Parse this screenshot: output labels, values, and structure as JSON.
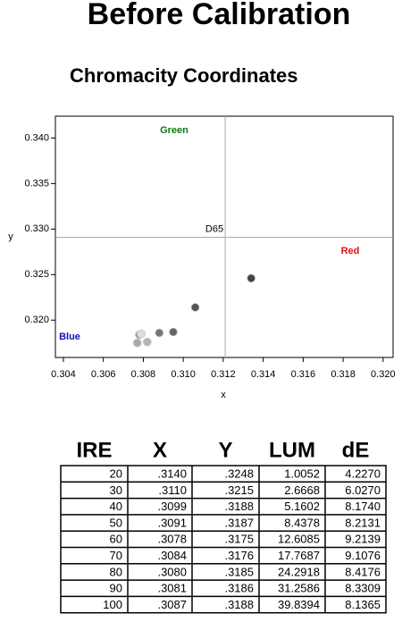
{
  "title": "Before Calibration",
  "chart_data": {
    "type": "scatter",
    "title": "Chromacity Coordinates",
    "x_label": "x",
    "y_label": "y",
    "xlim": [
      0.3036,
      0.3205
    ],
    "ylim": [
      0.3159,
      0.3424
    ],
    "xticks": [
      0.304,
      0.306,
      0.308,
      {
        "value": 0.31,
        "label": "0.310"
      },
      0.312,
      0.314,
      0.316,
      0.318,
      {
        "value": 0.32,
        "label": "0.320"
      }
    ],
    "yticks": [
      {
        "value": 0.32,
        "label": "0.320"
      },
      0.325,
      {
        "value": 0.33,
        "label": "0.330"
      },
      0.335,
      {
        "value": 0.34,
        "label": "0.340"
      }
    ],
    "series": [
      {
        "x": [
          0.3134,
          0.3106,
          0.3095,
          0.3088,
          0.3078,
          0.3077,
          0.3082,
          0.3079
        ],
        "values": [
          0.3246,
          0.3214,
          0.3187,
          0.3186,
          0.3184,
          0.3175,
          0.3176,
          0.3185
        ],
        "colors": [
          "#444444",
          "#555555",
          "#666666",
          "#777777",
          "#999999",
          "#aaaaaa",
          "#b4b4b4",
          "#dddddd"
        ]
      }
    ],
    "reference": {
      "label": "D65",
      "x": 0.3121,
      "y": 0.3291
    },
    "annotations": [
      {
        "text": "Green",
        "color": "#0a7a0a"
      },
      {
        "text": "Red",
        "color": "#e01010"
      },
      {
        "text": "Blue",
        "color": "#1010c0"
      }
    ]
  },
  "table": {
    "header": [
      "IRE",
      "X",
      "Y",
      "LUM",
      "dE"
    ],
    "rows": [
      [
        "20",
        ".3140",
        ".3248",
        "1.0052",
        "4.2270"
      ],
      [
        "30",
        ".3110",
        ".3215",
        "2.6668",
        "6.0270"
      ],
      [
        "40",
        ".3099",
        ".3188",
        "5.1602",
        "8.1740"
      ],
      [
        "50",
        ".3091",
        ".3187",
        "8.4378",
        "8.2131"
      ],
      [
        "60",
        ".3078",
        ".3175",
        "12.6085",
        "9.2139"
      ],
      [
        "70",
        ".3084",
        ".3176",
        "17.7687",
        "9.1076"
      ],
      [
        "80",
        ".3080",
        ".3185",
        "24.2918",
        "8.4176"
      ],
      [
        "90",
        ".3081",
        ".3186",
        "31.2586",
        "8.3309"
      ],
      [
        "100",
        ".3087",
        ".3188",
        "39.8394",
        "8.1365"
      ]
    ]
  }
}
